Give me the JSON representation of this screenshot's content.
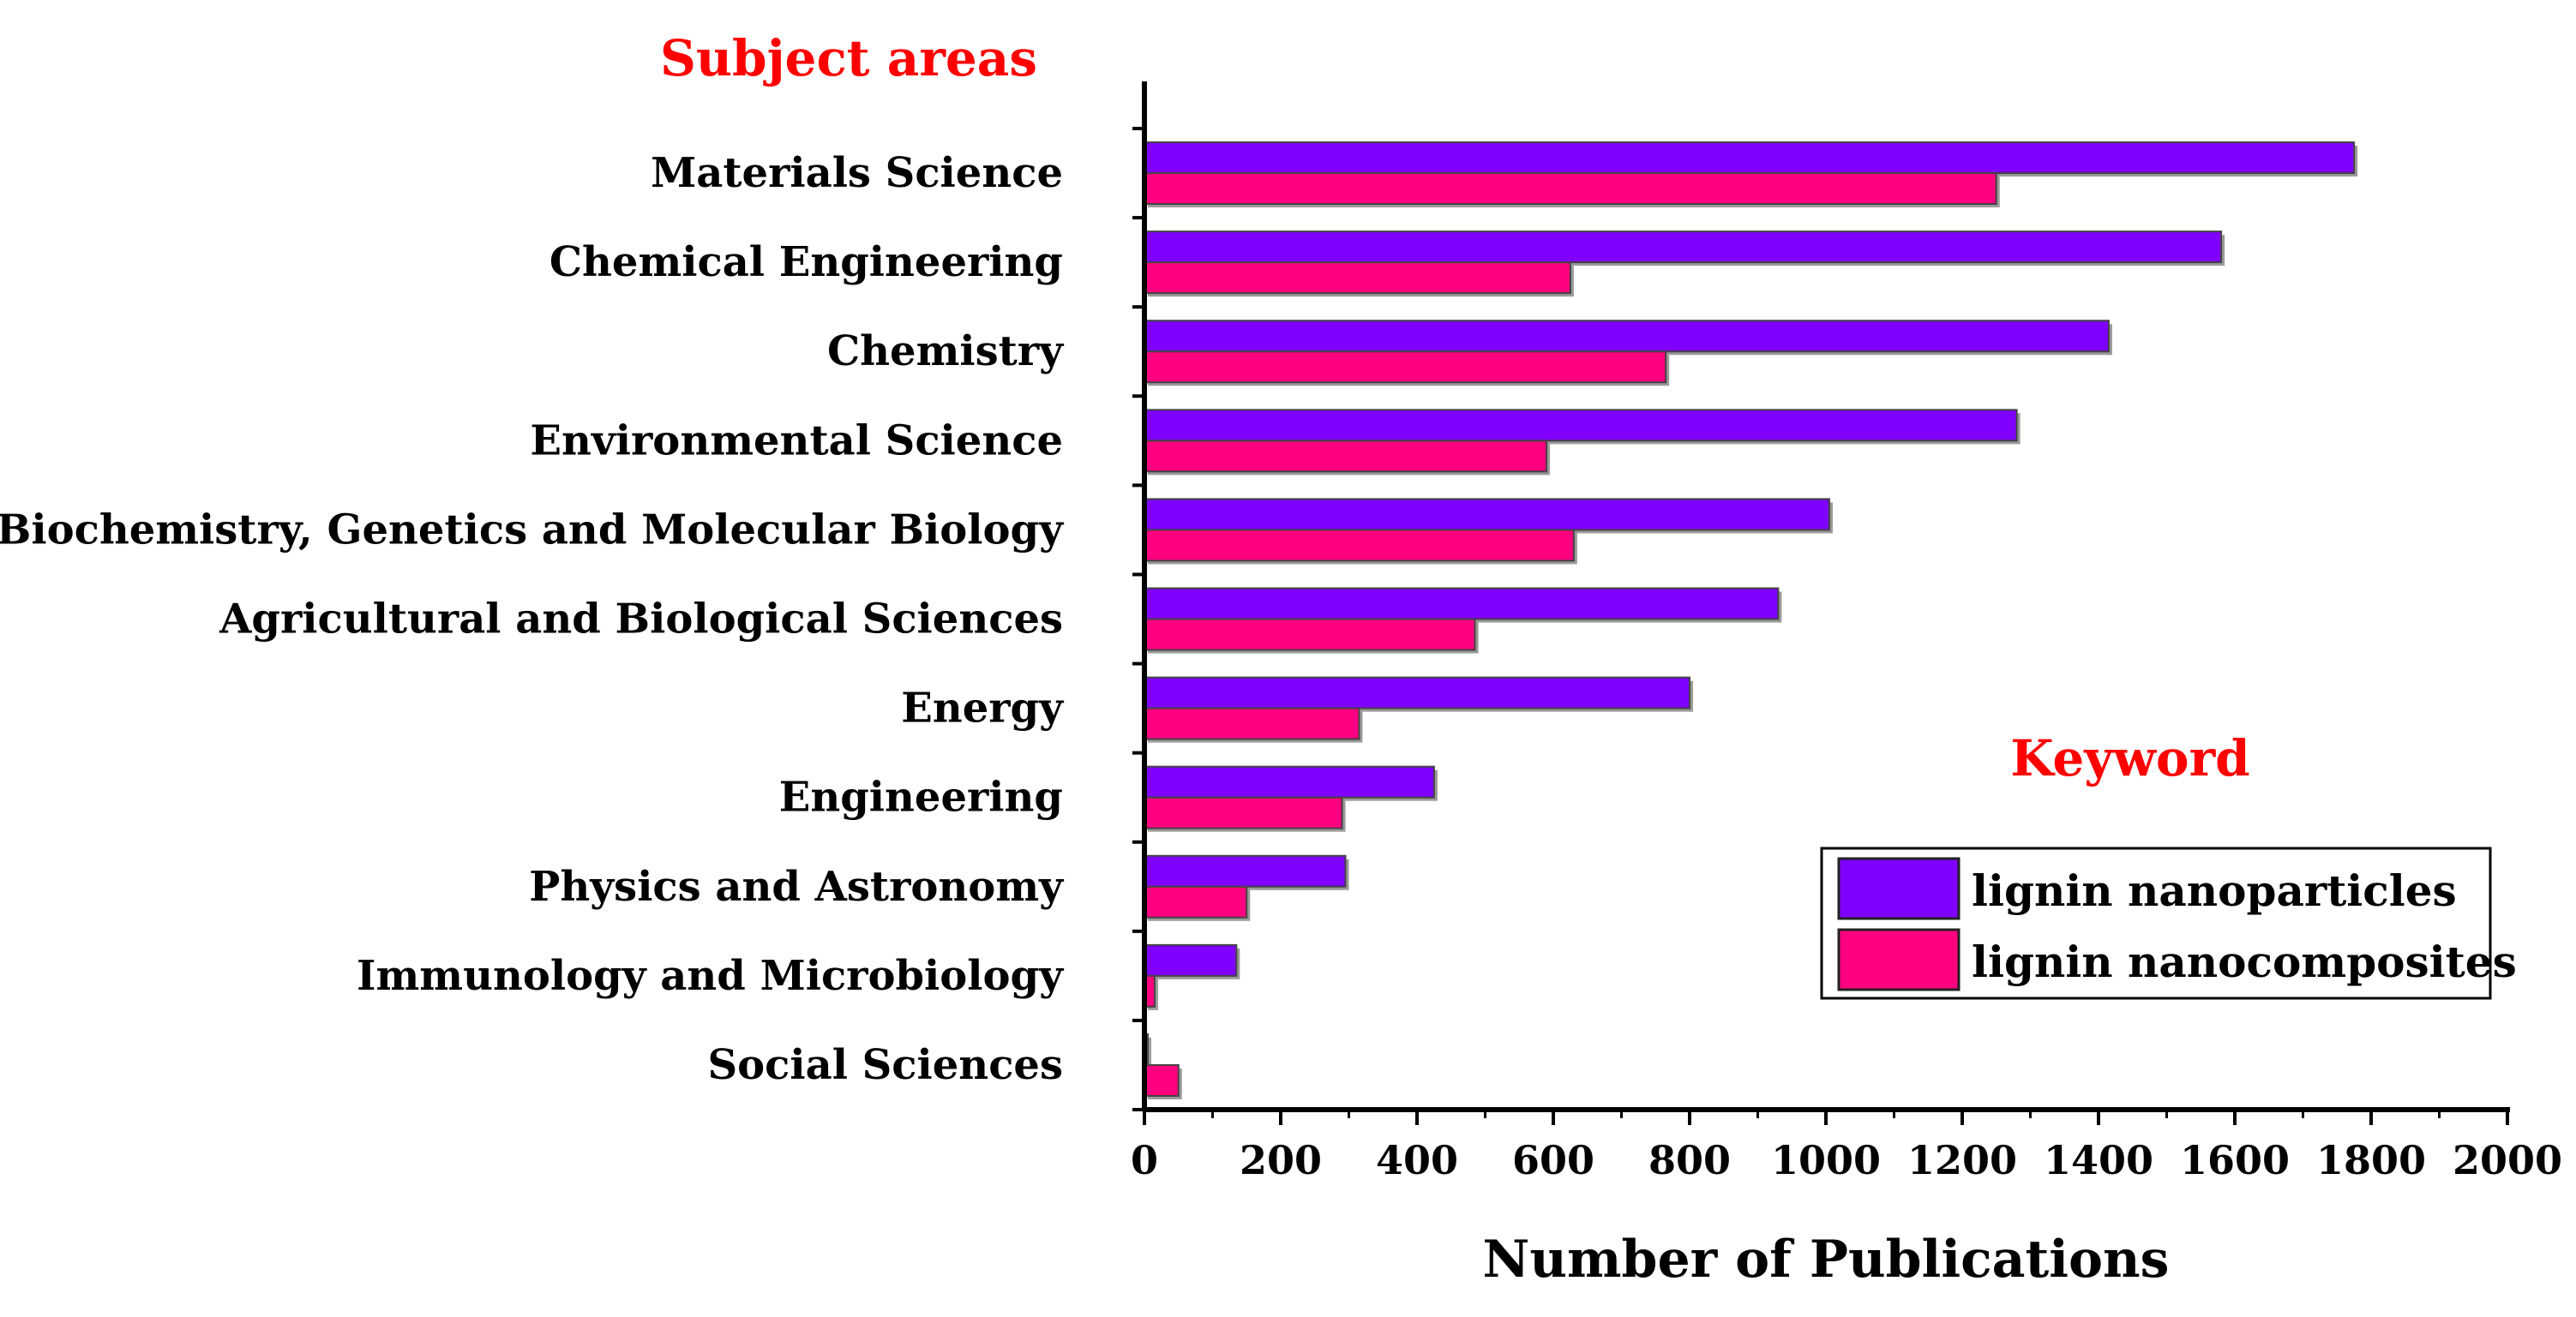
{
  "chart_data": {
    "type": "bar",
    "orientation": "horizontal",
    "subject_heading": "Subject areas",
    "legend_title": "Keyword",
    "xlabel": "Number of Publications",
    "xlim": [
      0,
      2000
    ],
    "x_ticks": [
      "0",
      "200",
      "400",
      "600",
      "800",
      "1000",
      "1200",
      "1400",
      "1600",
      "1800",
      "2000"
    ],
    "categories": [
      "Materials Science",
      "Chemical Engineering",
      "Chemistry",
      "Environmental Science",
      "Biochemistry, Genetics and Molecular Biology",
      "Agricultural and Biological Sciences",
      "Energy",
      "Engineering",
      "Physics and Astronomy",
      "Immunology and Microbiology",
      "Social Sciences"
    ],
    "series": [
      {
        "name": "lignin nanoparticles",
        "color": "#8000ff",
        "values": [
          1775,
          1580,
          1415,
          1280,
          1005,
          930,
          800,
          425,
          295,
          135,
          5
        ]
      },
      {
        "name": "lignin nanocomposites",
        "color": "#ff0080",
        "values": [
          1250,
          625,
          765,
          590,
          630,
          485,
          315,
          290,
          150,
          15,
          50
        ]
      }
    ],
    "colors": {
      "heading": "#ff0000",
      "text": "#000000",
      "bar_edge": "#444444"
    }
  }
}
